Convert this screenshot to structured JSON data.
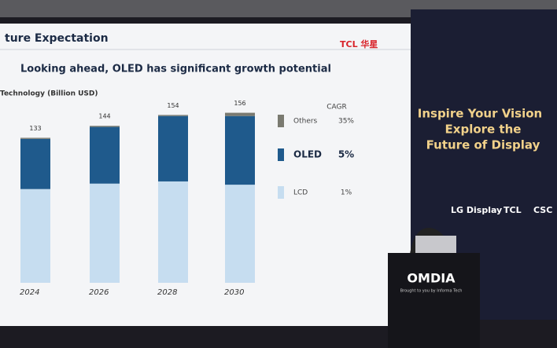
{
  "slide": {
    "title": "ture Expectation",
    "logo": "TCL 华星",
    "subtitle": "Looking ahead, OLED has significant growth potential",
    "cagr_header": "CAGR"
  },
  "chart_data": {
    "type": "stacked-bar",
    "y_label": "Technology (Billion USD)",
    "categories": [
      "2024",
      "2026",
      "2028",
      "2030"
    ],
    "totals": [
      133,
      144,
      154,
      156
    ],
    "ylim": [
      0,
      160
    ],
    "series": [
      {
        "name": "LCD",
        "color": "#c6ddf0",
        "values": [
          86,
          91,
          93,
          90
        ],
        "cagr": "1%"
      },
      {
        "name": "OLED",
        "color": "#1f5a8c",
        "values": [
          46,
          52,
          60,
          63
        ],
        "cagr": "5%",
        "highlight": true
      },
      {
        "name": "Others",
        "color": "#7a7a70",
        "values": [
          1,
          1,
          1,
          3
        ],
        "cagr": "35%"
      }
    ]
  },
  "banner": {
    "lines": [
      "Inspire Your Vision",
      "Explore the",
      "Future of Display"
    ],
    "sponsors": [
      "LG Display",
      "TCL",
      "CSC"
    ]
  },
  "podium": {
    "brand": "OMDIA",
    "tagline": "Brought to you by Informa Tech"
  }
}
